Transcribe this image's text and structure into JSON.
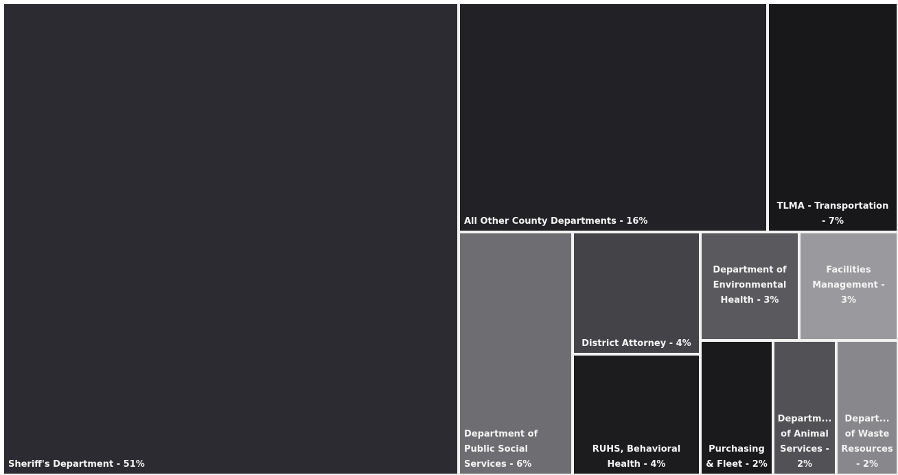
{
  "chart_data": {
    "type": "treemap",
    "title": "",
    "items": [
      {
        "name": "Sheriff's Department",
        "value": 51,
        "label": "Sheriff's Department - 51%",
        "color": "#2b2b31"
      },
      {
        "name": "All Other County Departments",
        "value": 16,
        "label": "All Other County Departments - 16%",
        "color": "#222226"
      },
      {
        "name": "TLMA - Transportation",
        "value": 7,
        "label": "TLMA - Transportation\n- 7%",
        "color": "#18181b"
      },
      {
        "name": "Department of Public Social Services",
        "value": 6,
        "label": "Department of\nPublic Social\nServices - 6%",
        "color": "#6e6e72"
      },
      {
        "name": "District Attorney",
        "value": 4,
        "label": "District Attorney - 4%",
        "color": "#444448"
      },
      {
        "name": "RUHS, Behavioral Health",
        "value": 4,
        "label": "RUHS, Behavioral\nHealth - 4%",
        "color": "#1c1c1f"
      },
      {
        "name": "Department of Environmental Health",
        "value": 3,
        "label": "Department of\nEnvironmental\nHealth - 3%",
        "color": "#5a5a5e"
      },
      {
        "name": "Facilities Management",
        "value": 3,
        "label": "Facilities\nManagement -\n3%",
        "color": "#9a9a9e"
      },
      {
        "name": "Purchasing & Fleet",
        "value": 2,
        "label": "Purchasing\n& Fleet - 2%",
        "color": "#1a1a1d"
      },
      {
        "name": "Department of Animal Services",
        "value": 2,
        "label": "Departm...\nof Animal\nServices -\n2%",
        "color": "#525256"
      },
      {
        "name": "Department of Waste Resources",
        "value": 2,
        "label": "Depart...\nof Waste\nResources\n- 2%",
        "color": "#88888c"
      }
    ]
  }
}
